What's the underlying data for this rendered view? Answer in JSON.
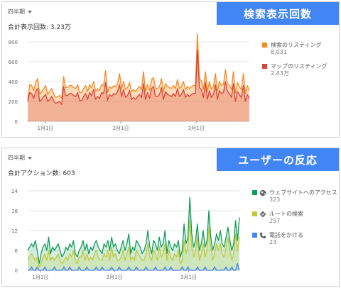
{
  "panel1": {
    "period_label": "四半期",
    "total_label": "合計表示回数: 3.23万",
    "banner": "検索表示回数"
  },
  "panel2": {
    "period_label": "四半期",
    "total_label": "合計アクション数: 603",
    "banner": "ユーザーの反応"
  },
  "chart_data": [
    {
      "type": "area",
      "title": "",
      "ylim": [
        0,
        800
      ],
      "yticks": [
        0,
        200,
        400,
        600,
        800
      ],
      "x_tick_labels": [
        "1月1日",
        "2月1日",
        "3月1日"
      ],
      "legend_position": "right",
      "series": [
        {
          "name": "検索のリスティング",
          "total": "8,031",
          "color": "#f5881f",
          "values": [
            220,
            370,
            360,
            310,
            390,
            430,
            270,
            300,
            330,
            360,
            270,
            300,
            330,
            280,
            240,
            250,
            260,
            230,
            450,
            340,
            340,
            360,
            360,
            340,
            330,
            370,
            290,
            290,
            330,
            360,
            300,
            370,
            340,
            400,
            300,
            330,
            310,
            370,
            360,
            510,
            290,
            350,
            330,
            360,
            350,
            380,
            480,
            330,
            400,
            320,
            340,
            390,
            300,
            320,
            300,
            330,
            350,
            320,
            500,
            300,
            370,
            310,
            420,
            440,
            330,
            330,
            350,
            430,
            300,
            380,
            350,
            340,
            330,
            360,
            330,
            420,
            330,
            350,
            400,
            320,
            350,
            330,
            350,
            360,
            360,
            880,
            430,
            410,
            320,
            500,
            300,
            400,
            320,
            350,
            480,
            300,
            400,
            360,
            370,
            520,
            380,
            360,
            320,
            500,
            280,
            390,
            350,
            320,
            480,
            280,
            360,
            310
          ]
        },
        {
          "name": "マップのリスティング",
          "total": "2.43万",
          "color": "#db4437",
          "values": [
            200,
            290,
            280,
            230,
            300,
            330,
            200,
            220,
            250,
            270,
            200,
            220,
            250,
            210,
            180,
            190,
            200,
            170,
            350,
            260,
            260,
            280,
            280,
            260,
            250,
            290,
            210,
            210,
            250,
            280,
            220,
            290,
            260,
            320,
            220,
            250,
            230,
            290,
            280,
            390,
            210,
            270,
            250,
            280,
            270,
            300,
            370,
            250,
            320,
            240,
            260,
            310,
            220,
            240,
            220,
            250,
            270,
            240,
            380,
            220,
            290,
            230,
            330,
            350,
            250,
            250,
            270,
            340,
            220,
            300,
            270,
            260,
            250,
            280,
            250,
            330,
            250,
            270,
            320,
            240,
            270,
            250,
            270,
            280,
            280,
            720,
            340,
            320,
            240,
            390,
            220,
            310,
            240,
            270,
            370,
            220,
            310,
            280,
            290,
            400,
            300,
            280,
            240,
            380,
            200,
            300,
            270,
            240,
            360,
            200,
            270,
            230
          ]
        }
      ]
    },
    {
      "type": "area",
      "title": "",
      "ylim": [
        0,
        24
      ],
      "yticks": [
        0,
        6,
        12,
        18,
        24
      ],
      "x_tick_labels": [
        "1月1日",
        "2月1日",
        "3月1日"
      ],
      "legend_position": "right",
      "series": [
        {
          "name": "ウェブサイトへのアクセス",
          "total": "323",
          "color": "#0f9d58",
          "icon": "globe-icon",
          "values": [
            6,
            7,
            8,
            7,
            9,
            6,
            2,
            5,
            7,
            8,
            6,
            10,
            5,
            7,
            6,
            7,
            8,
            6,
            4,
            5,
            7,
            6,
            8,
            7,
            9,
            5,
            4,
            6,
            7,
            9,
            6,
            8,
            5,
            7,
            6,
            8,
            9,
            7,
            6,
            5,
            8,
            7,
            9,
            6,
            10,
            7,
            8,
            6,
            5,
            7,
            9,
            6,
            8,
            11,
            5,
            7,
            6,
            9,
            8,
            7,
            5,
            6,
            8,
            12,
            7,
            5,
            9,
            8,
            6,
            10,
            7,
            8,
            12,
            5,
            9,
            7,
            6,
            8,
            7,
            9,
            4,
            6,
            14,
            8,
            10,
            22,
            11,
            7,
            9,
            14,
            6,
            8,
            12,
            7,
            9,
            18,
            10,
            6,
            8,
            11,
            9,
            12,
            8,
            7,
            10,
            13,
            9,
            6,
            8,
            15,
            9,
            16
          ]
        },
        {
          "name": "ルートの検索",
          "total": "257",
          "color": "#c0ca33",
          "icon": "directions-icon",
          "values": [
            3,
            4,
            5,
            4,
            3,
            4,
            1,
            2,
            4,
            5,
            3,
            6,
            3,
            4,
            3,
            4,
            5,
            3,
            2,
            3,
            4,
            3,
            5,
            4,
            6,
            3,
            2,
            4,
            4,
            6,
            3,
            5,
            3,
            4,
            3,
            5,
            6,
            4,
            3,
            3,
            5,
            4,
            6,
            3,
            7,
            4,
            5,
            3,
            3,
            4,
            6,
            3,
            5,
            7,
            3,
            4,
            3,
            6,
            5,
            4,
            3,
            3,
            5,
            8,
            4,
            3,
            6,
            5,
            3,
            7,
            4,
            5,
            8,
            3,
            6,
            4,
            3,
            5,
            4,
            6,
            2,
            3,
            9,
            5,
            7,
            15,
            7,
            4,
            6,
            10,
            3,
            5,
            8,
            4,
            6,
            13,
            7,
            3,
            5,
            8,
            6,
            8,
            5,
            4,
            7,
            10,
            6,
            3,
            5,
            11,
            6,
            10
          ]
        },
        {
          "name": "電話をかける",
          "total": "23",
          "color": "#4285f4",
          "icon": "phone-icon",
          "values": [
            0,
            0,
            1,
            0,
            0,
            1,
            0,
            0,
            0,
            1,
            0,
            0,
            0,
            0,
            1,
            0,
            0,
            0,
            0,
            1,
            0,
            0,
            1,
            0,
            0,
            0,
            0,
            1,
            0,
            0,
            0,
            1,
            0,
            0,
            0,
            0,
            1,
            0,
            0,
            1,
            0,
            0,
            0,
            0,
            1,
            0,
            0,
            0,
            1,
            0,
            0,
            0,
            0,
            1,
            0,
            0,
            0,
            1,
            0,
            0,
            0,
            0,
            1,
            0,
            0,
            0,
            0,
            1,
            0,
            0,
            0,
            0,
            1,
            0,
            0,
            1,
            0,
            0,
            0,
            0,
            0,
            1,
            0,
            0,
            1,
            0,
            0,
            0,
            0,
            1,
            0,
            0,
            0,
            1,
            0,
            0,
            0,
            0,
            1,
            0,
            0,
            0,
            0,
            0,
            1,
            0,
            0,
            1,
            0,
            0,
            2,
            0
          ]
        }
      ]
    }
  ]
}
